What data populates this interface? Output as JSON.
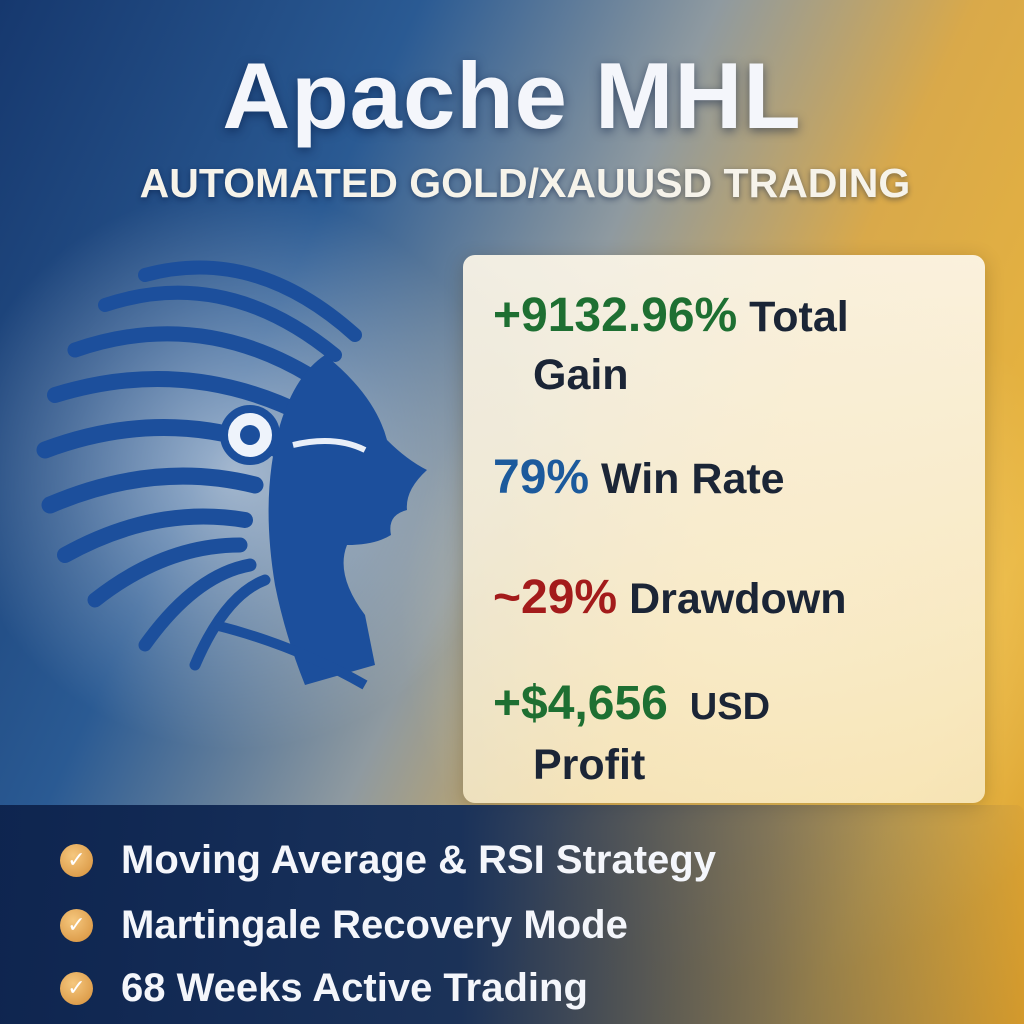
{
  "header": {
    "title": "Apache MHL",
    "subtitle": "AUTOMATED GOLD/XAUUSD TRADING"
  },
  "logo": {
    "icon": "native-chief-headdress-profile-icon",
    "color": "#1c4f9c"
  },
  "stats": [
    {
      "value": "+9132.96%",
      "label_1": "Total",
      "label_2": "Gain",
      "color": "#1e6f32"
    },
    {
      "value": "79%",
      "label_1": "Win Rate",
      "color": "#1c5a9c"
    },
    {
      "value": "~29%",
      "label_1": "Drawdown",
      "color": "#a31b1b"
    },
    {
      "value": "+$4,656",
      "label_1": "USD",
      "label_2": "Profit",
      "color": "#1e6f32"
    }
  ],
  "features": [
    {
      "icon": "check-circle-icon",
      "label": "Moving Average & RSI Strategy"
    },
    {
      "icon": "check-circle-icon",
      "label": "Martingale Recovery Mode"
    },
    {
      "icon": "check-circle-icon",
      "label": "68 Weeks Active Trading"
    }
  ]
}
